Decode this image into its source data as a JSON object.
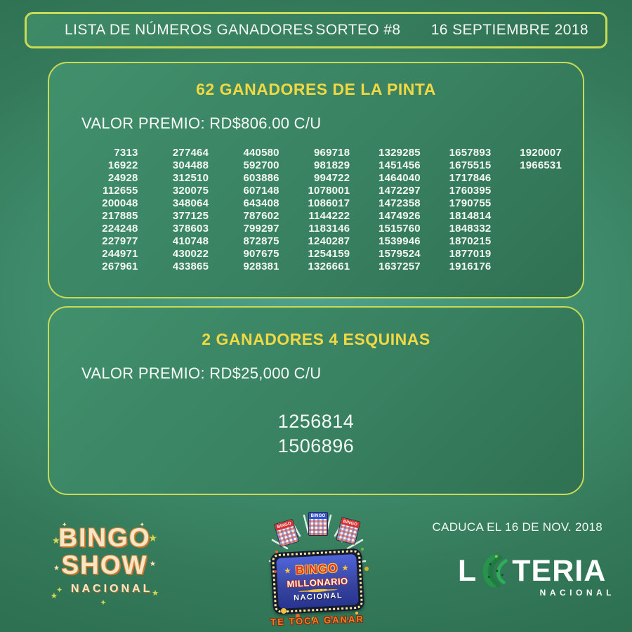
{
  "header": {
    "title": "LISTA DE NÚMEROS GANADORES",
    "draw": "SORTEO #8",
    "date": "16 SEPTIEMBRE 2018"
  },
  "pinta": {
    "title": "62 GANADORES DE LA PINTA",
    "prize": "VALOR PREMIO: RD$806.00 C/U",
    "columns": [
      [
        "7313",
        "16922",
        "24928",
        "112655",
        "200048",
        "217885",
        "224248",
        "227977",
        "244971",
        "267961"
      ],
      [
        "277464",
        "304488",
        "312510",
        "320075",
        "348064",
        "377125",
        "378603",
        "410748",
        "430022",
        "433865"
      ],
      [
        "440580",
        "592700",
        "603886",
        "607148",
        "643408",
        "787602",
        "799297",
        "872875",
        "907675",
        "928381"
      ],
      [
        "969718",
        "981829",
        "994722",
        "1078001",
        "1086017",
        "1144222",
        "1183146",
        "1240287",
        "1254159",
        "1326661"
      ],
      [
        "1329285",
        "1451456",
        "1464040",
        "1472297",
        "1472358",
        "1474926",
        "1515760",
        "1539946",
        "1579524",
        "1637257"
      ],
      [
        "1657893",
        "1675515",
        "1717846",
        "1760395",
        "1790755",
        "1814814",
        "1848332",
        "1870215",
        "1877019",
        "1916176"
      ],
      [
        "1920007",
        "1966531"
      ]
    ]
  },
  "esquinas": {
    "title": "2 GANADORES 4 ESQUINAS",
    "prize": "VALOR PREMIO: RD$25,000 C/U",
    "winners": [
      "1256814",
      "1506896"
    ]
  },
  "footer": {
    "expiry": "CADUCA EL 16 DE NOV. 2018",
    "bingo_show": {
      "line1": "BINGO",
      "line2": "SHOW",
      "line3": "NACIONAL"
    },
    "bingo_millonario": {
      "card_label": "BINGO",
      "line1": "BINGO",
      "line2": "MILLONARIO",
      "line3": "NACIONAL",
      "tagline": "TE TOCA GANAR"
    },
    "loteria": {
      "part1": "L",
      "part2": "TERIA",
      "sub": "NACIONAL"
    }
  },
  "icons": {
    "star": "★",
    "small_star": "✦"
  },
  "colors": {
    "accent_border": "#c9da55",
    "title_yellow": "#f2d943",
    "background_green": "#347a5a",
    "text_white": "#f4f8f2"
  }
}
